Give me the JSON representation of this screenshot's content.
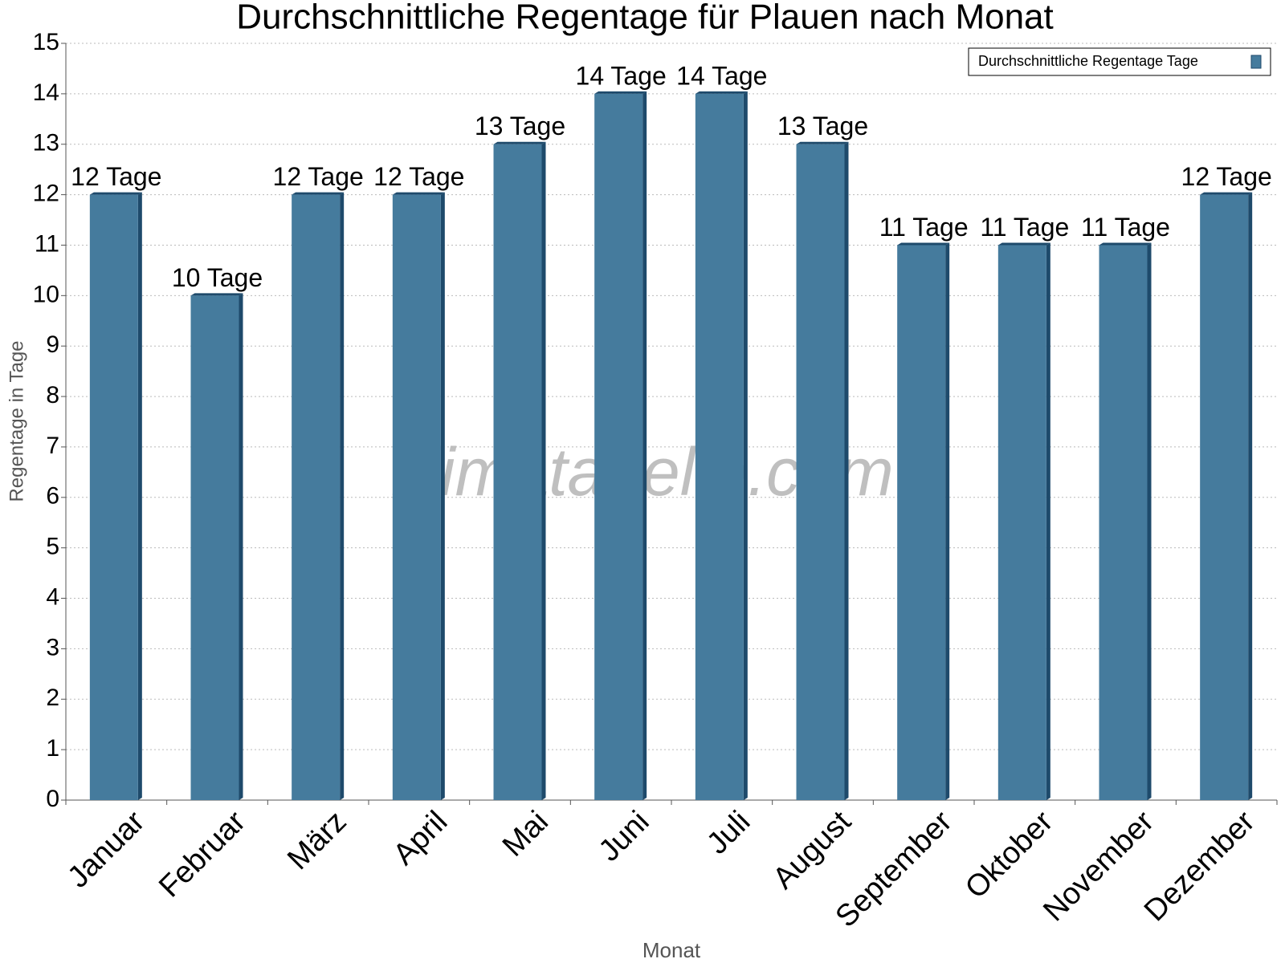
{
  "chart_data": {
    "type": "bar",
    "title": "Durchschnittliche Regentage für Plauen nach Monat",
    "xlabel": "Monat",
    "ylabel": "Regentage in Tage",
    "watermark": "klimatabelle.com",
    "categories": [
      "Januar",
      "Februar",
      "März",
      "April",
      "Mai",
      "Juni",
      "Juli",
      "August",
      "September",
      "Oktober",
      "November",
      "Dezember"
    ],
    "series": [
      {
        "name": "Durchschnittliche Regentage Tage",
        "color": "#457b9d",
        "values": [
          12,
          10,
          12,
          12,
          13,
          14,
          14,
          13,
          11,
          11,
          11,
          12
        ],
        "value_labels": [
          "12 Tage",
          "10 Tage",
          "12 Tage",
          "12 Tage",
          "13 Tage",
          "14 Tage",
          "14 Tage",
          "13 Tage",
          "11 Tage",
          "11 Tage",
          "11 Tage",
          "12 Tage"
        ]
      }
    ],
    "ylim": [
      0,
      15
    ],
    "yticks": [
      0,
      1,
      2,
      3,
      4,
      5,
      6,
      7,
      8,
      9,
      10,
      11,
      12,
      13,
      14,
      15
    ],
    "grid": true,
    "legend": "upper right"
  }
}
